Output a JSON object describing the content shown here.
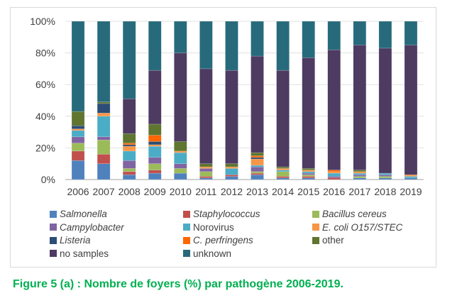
{
  "chart_data": {
    "type": "bar",
    "stacked": true,
    "percent": true,
    "categories": [
      "2006",
      "2007",
      "2008",
      "2009",
      "2010",
      "2011",
      "2012",
      "2013",
      "2014",
      "2015",
      "2016",
      "2017",
      "2018",
      "2019"
    ],
    "yticks": [
      "0%",
      "20%",
      "40%",
      "60%",
      "80%",
      "100%"
    ],
    "ylim": [
      0,
      100
    ],
    "grid": true,
    "legend": "bottom",
    "series": [
      {
        "name": "Salmonella",
        "italic": true,
        "color": "#4f81bd",
        "values": [
          12,
          10,
          3,
          4,
          4,
          1,
          2,
          3,
          1,
          1,
          0,
          1,
          1,
          1
        ]
      },
      {
        "name": "Staphylococcus",
        "italic": true,
        "color": "#c0504d",
        "values": [
          6,
          6,
          2,
          2,
          0,
          1,
          1,
          1,
          1,
          1,
          1,
          0,
          0,
          0
        ]
      },
      {
        "name": "Bacillus cereus",
        "italic": true,
        "color": "#9bbb59",
        "values": [
          5,
          9,
          2,
          4,
          3,
          3,
          0,
          1,
          3,
          1,
          0,
          1,
          1,
          0
        ]
      },
      {
        "name": "Campylobacter",
        "italic": true,
        "color": "#8064a2",
        "values": [
          4,
          2,
          5,
          4,
          3,
          2,
          0,
          3,
          0,
          1,
          1,
          1,
          1,
          0
        ]
      },
      {
        "name": "Norovirus",
        "italic": false,
        "color": "#4bacc6",
        "values": [
          4,
          13,
          6,
          7,
          7,
          0,
          4,
          1,
          1,
          1,
          2,
          1,
          1,
          1
        ]
      },
      {
        "name": "E. coli O157/STEC",
        "italic": true,
        "color": "#f79646",
        "values": [
          1,
          2,
          3,
          1,
          1,
          1,
          1,
          4,
          1,
          1,
          1,
          1,
          0,
          1
        ]
      },
      {
        "name": "Listeria",
        "italic": true,
        "color": "#2c4d75",
        "values": [
          2,
          6,
          1,
          2,
          0,
          0,
          0,
          1,
          0,
          0,
          0,
          0,
          0,
          0
        ]
      },
      {
        "name": "C. perfringens",
        "italic": true,
        "color": "#ff6600",
        "values": [
          0,
          0,
          1,
          4,
          0,
          0,
          0,
          1,
          0,
          0,
          1,
          0,
          0,
          0
        ]
      },
      {
        "name": "other",
        "italic": false,
        "color": "#5f7530",
        "values": [
          9,
          1,
          6,
          7,
          6,
          2,
          2,
          2,
          1,
          1,
          0,
          1,
          0,
          0
        ]
      },
      {
        "name": "no samples",
        "italic": false,
        "color": "#4d3b62",
        "values": [
          0,
          0,
          22,
          34,
          56,
          60,
          59,
          61,
          61,
          70,
          76,
          79,
          79,
          82
        ]
      },
      {
        "name": "unknown",
        "italic": false,
        "color": "#276a7c",
        "values": [
          57,
          51,
          49,
          31,
          20,
          30,
          31,
          22,
          31,
          23,
          18,
          15,
          17,
          15
        ]
      }
    ]
  },
  "caption": "Figure 5 (a) : Nombre de foyers (%) par pathogène 2006-2019."
}
